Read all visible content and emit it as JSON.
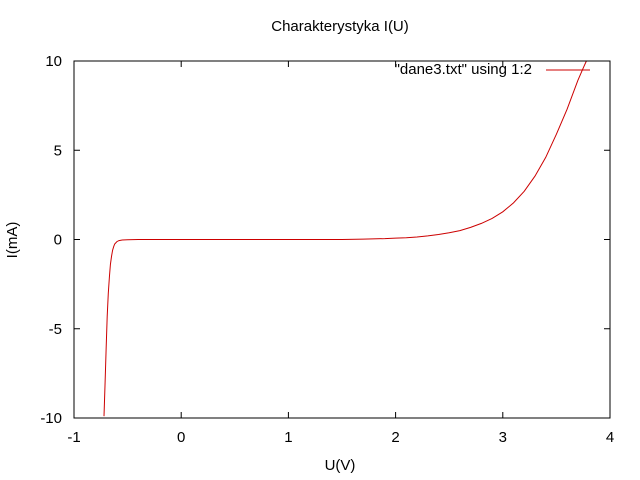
{
  "chart_data": {
    "type": "line",
    "title": "Charakterystyka I(U)",
    "xlabel": "U(V)",
    "ylabel": "I(mA)",
    "xlim": [
      -1,
      4
    ],
    "ylim": [
      -10,
      10
    ],
    "xticks": [
      -1,
      0,
      1,
      2,
      3,
      4
    ],
    "yticks": [
      -10,
      -5,
      0,
      5,
      10
    ],
    "grid": false,
    "legend_position": "top-right",
    "series": [
      {
        "name": "\"dane3.txt\" using 1:2",
        "color": "#cc0000",
        "x": [
          -0.72,
          -0.71,
          -0.7,
          -0.69,
          -0.68,
          -0.67,
          -0.66,
          -0.65,
          -0.64,
          -0.63,
          -0.62,
          -0.6,
          -0.58,
          -0.55,
          -0.5,
          -0.4,
          -0.2,
          0.0,
          0.5,
          1.0,
          1.5,
          1.7,
          1.9,
          2.0,
          2.1,
          2.2,
          2.3,
          2.4,
          2.5,
          2.6,
          2.7,
          2.8,
          2.9,
          3.0,
          3.1,
          3.2,
          3.3,
          3.4,
          3.5,
          3.6,
          3.7,
          3.75,
          3.78
        ],
        "y": [
          -9.9,
          -8.0,
          -6.0,
          -4.3,
          -3.0,
          -2.1,
          -1.4,
          -0.95,
          -0.6,
          -0.4,
          -0.25,
          -0.12,
          -0.06,
          -0.03,
          -0.01,
          0.0,
          0.0,
          0.0,
          0.0,
          0.0,
          0.0,
          0.02,
          0.05,
          0.08,
          0.1,
          0.14,
          0.2,
          0.28,
          0.38,
          0.5,
          0.68,
          0.9,
          1.18,
          1.55,
          2.05,
          2.7,
          3.55,
          4.6,
          5.9,
          7.3,
          8.9,
          9.6,
          10.0
        ]
      }
    ]
  }
}
